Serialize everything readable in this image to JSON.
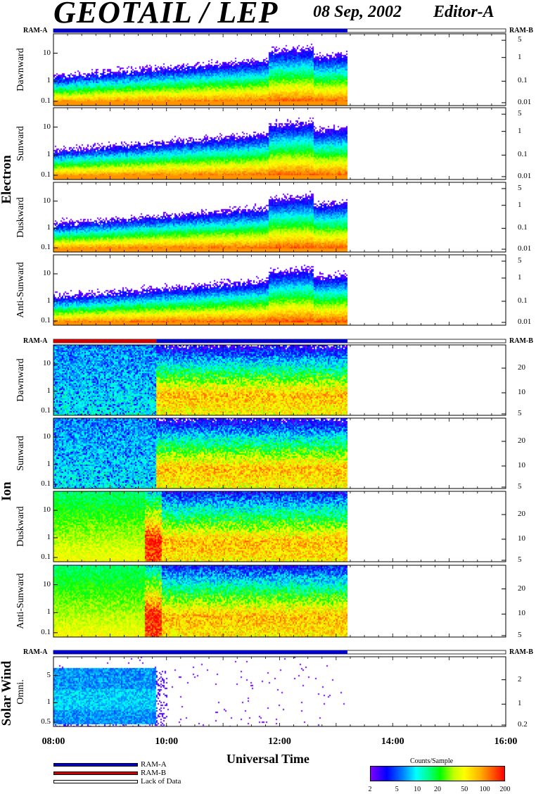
{
  "header": {
    "title": "GEOTAIL / LEP",
    "date": "08 Sep, 2002",
    "editor": "Editor-A"
  },
  "ram_labels": {
    "ram_a": "RAM-A",
    "ram_b": "RAM-B"
  },
  "groups": {
    "electron": "Electron",
    "ion": "Ion",
    "solar_wind": "Solar Wind"
  },
  "colors": {
    "ram_a": "#0000cc",
    "ram_b": "#cc0000",
    "lack_of_data": "#ffffff"
  },
  "legend": {
    "ram_a": "RAM-A",
    "ram_b": "RAM-B",
    "lack": "Lack of Data"
  },
  "colorbar": {
    "title": "Counts/Sample",
    "ticks": [
      "2",
      "5",
      "10",
      "20",
      "50",
      "100",
      "200"
    ],
    "range": [
      2,
      200
    ],
    "scale": "log"
  },
  "chart_data": {
    "type": "heatmap",
    "xlabel": "Universal Time",
    "x_ticks": [
      "08:00",
      "10:00",
      "12:00",
      "14:00",
      "16:00"
    ],
    "x_range_hours": [
      8,
      16
    ],
    "data_end_hour": 13.2,
    "panels": [
      {
        "group": "electron",
        "ylabel": "Dawnward",
        "left_ticks": [
          "10",
          "1",
          "0.1"
        ],
        "right_ticks": [
          "5",
          "1",
          "0.1",
          "0.01"
        ],
        "ram": "A",
        "spectrum": "electron"
      },
      {
        "group": "electron",
        "ylabel": "Sunward",
        "left_ticks": [
          "10",
          "1",
          "0.1"
        ],
        "right_ticks": [
          "5",
          "1",
          "0.1",
          "0.01"
        ],
        "ram": "A",
        "spectrum": "electron"
      },
      {
        "group": "electron",
        "ylabel": "Duskward",
        "left_ticks": [
          "10",
          "1",
          "0.1"
        ],
        "right_ticks": [
          "5",
          "1",
          "0.1",
          "0.01"
        ],
        "ram": "A",
        "spectrum": "electron"
      },
      {
        "group": "electron",
        "ylabel": "Anti-Sunward",
        "left_ticks": [
          "10",
          "1",
          "0.1"
        ],
        "right_ticks": [
          "5",
          "1",
          "0.1",
          "0.01"
        ],
        "ram": "A",
        "spectrum": "electron"
      },
      {
        "group": "ion",
        "ylabel": "Dawnward",
        "left_ticks": [
          "10",
          "1",
          "0.1"
        ],
        "right_ticks": [
          "20",
          "10",
          "5"
        ],
        "ram": "B_then_A",
        "ram_switch_hour": 9.82,
        "spectrum": "ion_sparse"
      },
      {
        "group": "ion",
        "ylabel": "Sunward",
        "left_ticks": [
          "10",
          "1",
          "0.1"
        ],
        "right_ticks": [
          "20",
          "10",
          "5"
        ],
        "ram": "B_then_A",
        "ram_switch_hour": 9.82,
        "spectrum": "ion_sparse"
      },
      {
        "group": "ion",
        "ylabel": "Duskward",
        "left_ticks": [
          "10",
          "1",
          "0.1"
        ],
        "right_ticks": [
          "20",
          "10",
          "5"
        ],
        "ram": "B_then_A",
        "ram_switch_hour": 9.82,
        "spectrum": "ion_dense"
      },
      {
        "group": "ion",
        "ylabel": "Anti-Sunward",
        "left_ticks": [
          "10",
          "1",
          "0.1"
        ],
        "right_ticks": [
          "20",
          "10",
          "5"
        ],
        "ram": "B_then_A",
        "ram_switch_hour": 9.82,
        "spectrum": "ion_dense"
      },
      {
        "group": "solar_wind",
        "ylabel": "Omni.",
        "left_ticks": [
          "5",
          "1",
          "0.5"
        ],
        "right_ticks": [
          "2",
          "1",
          "0.2"
        ],
        "ram": "A",
        "spectrum": "solar_wind"
      }
    ]
  }
}
